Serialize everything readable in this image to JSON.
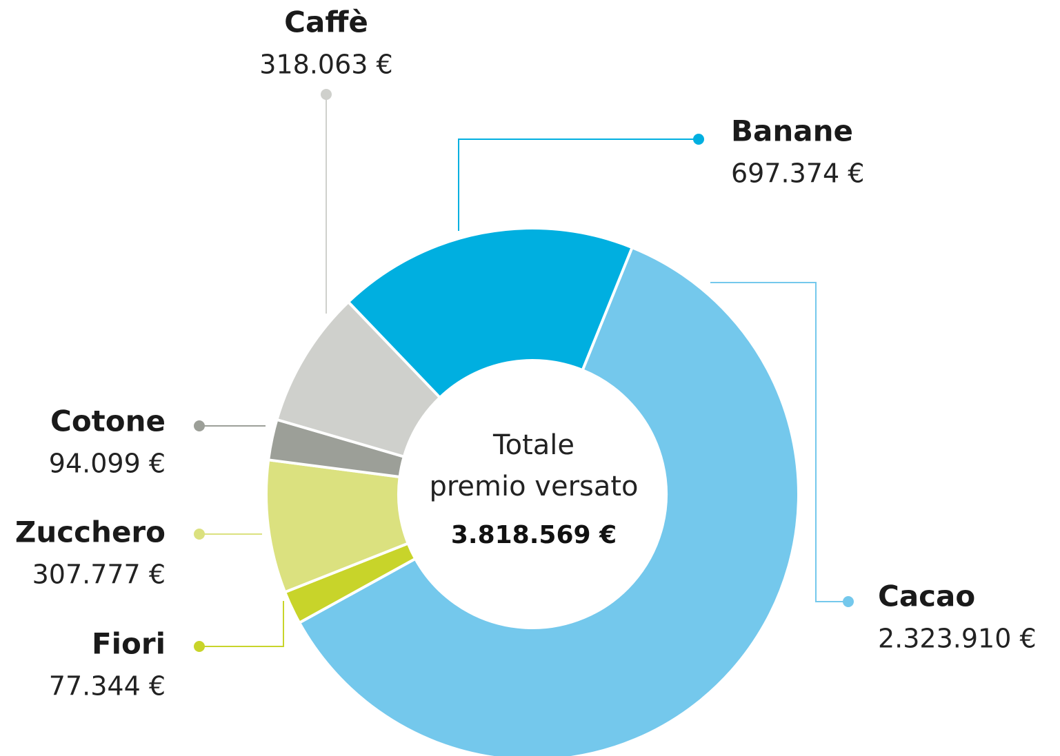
{
  "chart_data": {
    "type": "donut",
    "center_lines": [
      "Totale",
      "premio versato"
    ],
    "total": "3.818.569 €",
    "categories": [
      "Cacao",
      "Fiori",
      "Zucchero",
      "Cotone",
      "Caffè",
      "Banane"
    ],
    "values": [
      2323910,
      77344,
      307777,
      94099,
      318063,
      697374
    ],
    "value_labels": [
      "2.323.910 €",
      "77.344 €",
      "307.777 €",
      "94.099 €",
      "318.063 €",
      "697.374 €"
    ],
    "colors": [
      "#74c8ec",
      "#c8d42a",
      "#dbe17f",
      "#9c9f98",
      "#cfd0cc",
      "#00afe0"
    ]
  }
}
